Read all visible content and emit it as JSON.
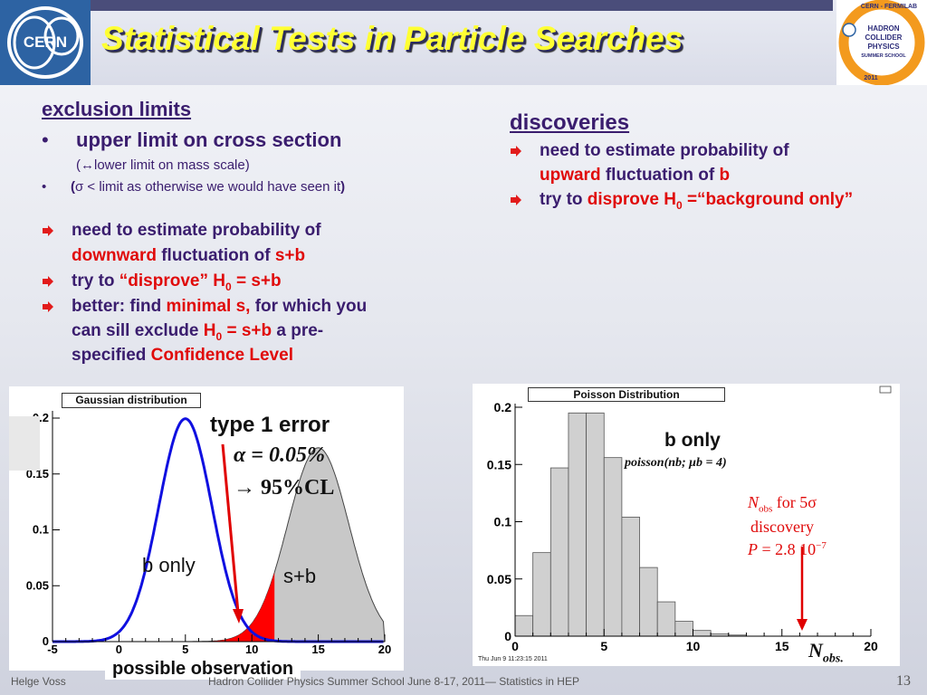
{
  "header": {
    "title": "Statistical Tests in Particle Searches",
    "cern_logo_text": "CERN",
    "school_logo_lines": [
      "CERN - FERMILAB",
      "HADRON",
      "COLLIDER",
      "PHYSICS",
      "SUMMER SCHOOL",
      "2011"
    ]
  },
  "left": {
    "heading": "exclusion limits",
    "bullet1": "upper limit on cross section",
    "bullet1_sub": "(↔lower limit on mass scale)",
    "bullet2_open": "(",
    "bullet2_text": "σ < limit as otherwise we would  have seen it",
    "bullet2_close": ")",
    "item1_line1": "need to estimate  probability of",
    "item1_red": "downward",
    "item1_rest": " fluctuation of ",
    "item1_red2": "s+b",
    "item2_pre": "try to ",
    "item2_red": "“disprove” H",
    "item2_sub": "0",
    "item2_red2": " = s+b",
    "item3_pre": "better: find ",
    "item3_red": "minimal s,",
    "item3_post": " for which you",
    "item3_line2_pre": "can sill exclude ",
    "item3_line2_red": "H",
    "item3_line2_sub": "0",
    "item3_line2_red2": " = s+b",
    "item3_line2_post": " a pre-",
    "item3_line3_pre": "specified ",
    "item3_line3_red": "Confidence Level"
  },
  "right": {
    "heading": "discoveries",
    "item1_line1": "need to estimate  probability of",
    "item1_red": "upward",
    "item1_rest": " fluctuation of ",
    "item1_red2": "b",
    "item2_pre": "try to ",
    "item2_red": "disprove H",
    "item2_sub": "0",
    "item2_red2": " =“background only”"
  },
  "gauss_plot": {
    "title": "Gaussian distribution",
    "yticks": [
      "0.2",
      "0.15",
      "0.1",
      "0.05",
      "0"
    ],
    "xticks": [
      "-5",
      "0",
      "5",
      "10",
      "15",
      "20"
    ],
    "label_b": "b only",
    "label_sb": "s+b",
    "label_type1": "type 1 error",
    "label_alpha": "α = 0.05%",
    "label_cl": "→ 95%CL",
    "label_obs": "possible  observation",
    "colors": {
      "b_curve": "#1010e0",
      "sb_fill": "#c8c8c8",
      "error_fill": "#ff0000",
      "arrow": "#e00000"
    }
  },
  "poisson_plot": {
    "title": "Poisson Distribution",
    "yticks": [
      "0.2",
      "0.15",
      "0.1",
      "0.05",
      "0"
    ],
    "xticks": [
      "0",
      "5",
      "10",
      "15",
      "20"
    ],
    "timestamp": "Thu Jun  9 11:23:15 2011",
    "label_b": "b only",
    "label_formula": "poisson(nb; μb = 4)",
    "label_nobs": "N",
    "label_nobs_sub": "obs",
    "label_for": " for 5σ",
    "label_discovery": "discovery",
    "label_p": "P",
    "label_p_val": " = 2.8 10",
    "label_p_exp": "−7",
    "label_bottom_nobs": "N",
    "label_bottom_sub": "obs."
  },
  "chart_data": [
    {
      "type": "area",
      "title": "Gaussian distribution",
      "xlabel": "",
      "ylabel": "",
      "xlim": [
        -5,
        20
      ],
      "ylim": [
        0,
        0.2
      ],
      "series": [
        {
          "name": "b only",
          "mean": 5,
          "sigma": 2
        },
        {
          "name": "s+b",
          "mean": 15,
          "sigma": 2.3
        }
      ]
    },
    {
      "type": "bar",
      "title": "Poisson Distribution",
      "xlabel": "",
      "ylabel": "",
      "xlim": [
        0,
        20
      ],
      "ylim": [
        0,
        0.2
      ],
      "categories": [
        "0",
        "1",
        "2",
        "3",
        "4",
        "5",
        "6",
        "7",
        "8",
        "9",
        "10",
        "11",
        "12",
        "13",
        "14",
        "15",
        "16",
        "17",
        "18",
        "19"
      ],
      "values": [
        0.018,
        0.073,
        0.147,
        0.195,
        0.195,
        0.156,
        0.104,
        0.06,
        0.03,
        0.013,
        0.005,
        0.002,
        0.001,
        0.0,
        0.0,
        0.0,
        0.0,
        0.0,
        0.0,
        0.0
      ]
    }
  ],
  "footer": {
    "author": "Helge Voss",
    "event": "Hadron Collider Physics Summer School  June 8-17, 2011— Statistics in HEP",
    "page": "13"
  }
}
